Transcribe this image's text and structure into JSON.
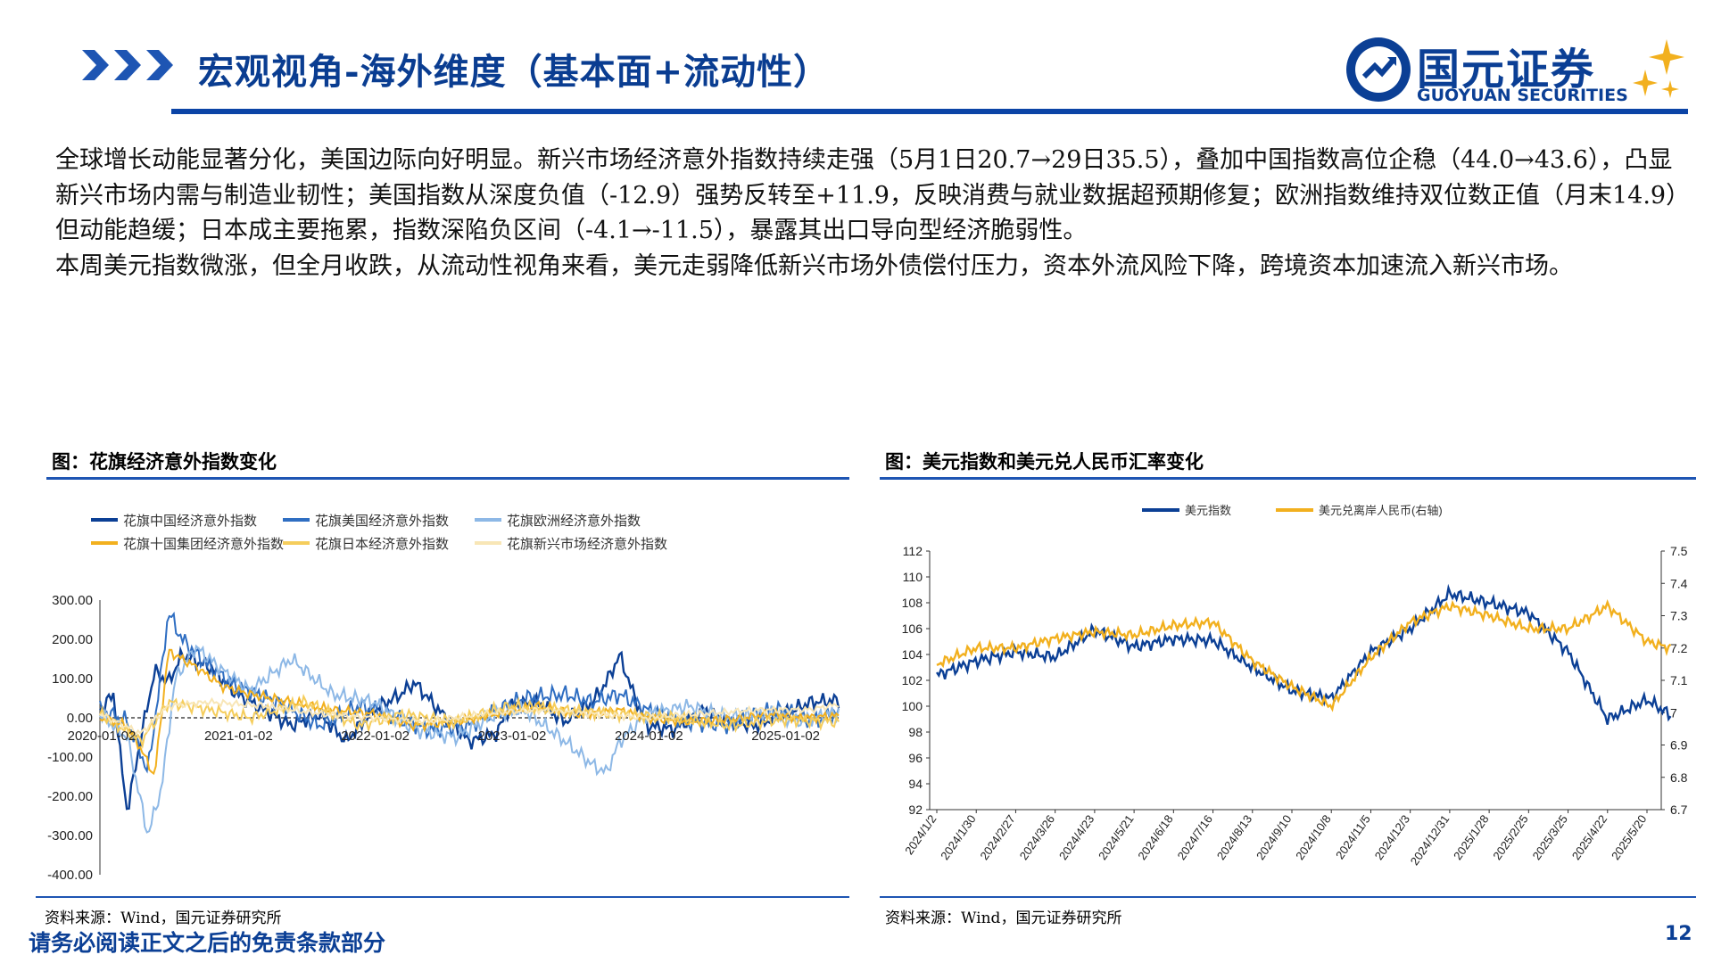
{
  "header": {
    "title": "宏观视角-海外维度（基本面+流动性）",
    "logo_cn": "国元证券",
    "logo_en": "GUOYUAN SECURITIES",
    "accent_color": "#0b44a6",
    "chevron_icon": "triple-chevron-icon"
  },
  "body": {
    "paragraph_1": "全球增长动能显著分化，美国边际向好明显。新兴市场经济意外指数持续走强（5月1日20.7→29日35.5），叠加中国指数高位企稳（44.0→43.6），凸显新兴市场内需与制造业韧性；美国指数从深度负值（-12.9）强势反转至+11.9，反映消费与就业数据超预期修复；欧洲指数维持双位数正值（月末14.9）但动能趋缓；日本成主要拖累，指数深陷负区间（-4.1→-11.5），暴露其出口导向型经济脆弱性。",
    "paragraph_2": "本周美元指数微涨，但全月收跌，从流动性视角来看，美元走弱降低新兴市场外债偿付压力，资本外流风险下降，跨境资本加速流入新兴市场。"
  },
  "figure_left": {
    "title": "图：花旗经济意外指数变化",
    "source": "资料来源：Wind，国元证券研究所"
  },
  "figure_right": {
    "title": "图：美元指数和美元兑人民币汇率变化",
    "source": "资料来源：Wind，国元证券研究所"
  },
  "footer": {
    "disclaimer": "请务必阅读正文之后的免责条款部分",
    "page_number": "12"
  },
  "chart_data": [
    {
      "type": "line",
      "legend_placement": "top",
      "grid": false,
      "ylim": [
        -400,
        300
      ],
      "y_ticks": [
        "300.00",
        "200.00",
        "100.00",
        "0.00",
        "-100.00",
        "-200.00",
        "-300.00",
        "-400.00"
      ],
      "x_ticks": [
        "2020-01-02",
        "2021-01-02",
        "2022-01-02",
        "2023-01-02",
        "2024-01-02",
        "2025-01-02"
      ],
      "x_tick_years": [
        2020,
        2021,
        2022,
        2023,
        2024,
        2025
      ],
      "xlim": [
        2020.0,
        2025.4
      ],
      "series": [
        {
          "name": "花旗中国经济意外指数",
          "color": "#0b3f95",
          "x": [
            2020.0,
            2020.1,
            2020.15,
            2020.2,
            2020.3,
            2020.4,
            2020.5,
            2020.6,
            2020.8,
            2021.0,
            2021.2,
            2021.4,
            2021.6,
            2021.8,
            2022.0,
            2022.2,
            2022.3,
            2022.5,
            2022.7,
            2022.9,
            2023.0,
            2023.2,
            2023.4,
            2023.6,
            2023.7,
            2023.8,
            2023.9,
            2024.0,
            2024.2,
            2024.4,
            2024.6,
            2024.8,
            2025.0,
            2025.2,
            2025.4
          ],
          "values": [
            20,
            60,
            -100,
            -240,
            -50,
            120,
            90,
            160,
            130,
            60,
            20,
            -20,
            10,
            -60,
            20,
            60,
            90,
            10,
            -60,
            -40,
            30,
            40,
            -10,
            40,
            90,
            160,
            60,
            -20,
            -30,
            20,
            -10,
            -20,
            10,
            40,
            44
          ]
        },
        {
          "name": "花旗美国经济意外指数",
          "color": "#2f6ec2",
          "x": [
            2020.0,
            2020.2,
            2020.3,
            2020.35,
            2020.45,
            2020.5,
            2020.6,
            2020.8,
            2021.0,
            2021.3,
            2021.6,
            2021.9,
            2022.1,
            2022.4,
            2022.7,
            2022.9,
            2023.1,
            2023.4,
            2023.6,
            2023.8,
            2024.0,
            2024.3,
            2024.6,
            2024.8,
            2025.0,
            2025.2,
            2025.4
          ],
          "values": [
            20,
            -10,
            -90,
            -140,
            120,
            270,
            200,
            130,
            80,
            40,
            -20,
            30,
            10,
            -30,
            -20,
            20,
            50,
            60,
            40,
            60,
            20,
            -10,
            -20,
            10,
            20,
            -10,
            12
          ]
        },
        {
          "name": "花旗欧洲经济意外指数",
          "color": "#8db8e6",
          "x": [
            2020.0,
            2020.2,
            2020.35,
            2020.45,
            2020.55,
            2020.7,
            2020.9,
            2021.1,
            2021.4,
            2021.7,
            2022.0,
            2022.3,
            2022.6,
            2022.9,
            2023.1,
            2023.4,
            2023.6,
            2023.7,
            2023.8,
            2024.0,
            2024.3,
            2024.6,
            2024.9,
            2025.1,
            2025.4
          ],
          "values": [
            10,
            -50,
            -300,
            -180,
            100,
            180,
            120,
            70,
            150,
            60,
            40,
            -30,
            -50,
            10,
            20,
            -60,
            -120,
            -140,
            -60,
            10,
            30,
            0,
            10,
            -10,
            15
          ]
        },
        {
          "name": "花旗十国集团经济意外指数",
          "color": "#f2b01e",
          "x": [
            2020.0,
            2020.2,
            2020.3,
            2020.4,
            2020.5,
            2020.7,
            2020.9,
            2021.1,
            2021.4,
            2021.7,
            2022.0,
            2022.3,
            2022.6,
            2022.9,
            2023.2,
            2023.5,
            2023.8,
            2024.0,
            2024.3,
            2024.6,
            2024.9,
            2025.1,
            2025.4
          ],
          "values": [
            0,
            -20,
            -80,
            -150,
            170,
            130,
            80,
            60,
            40,
            20,
            10,
            -20,
            -10,
            10,
            30,
            10,
            20,
            0,
            -10,
            -5,
            10,
            0,
            5
          ]
        },
        {
          "name": "花旗日本经济意外指数",
          "color": "#f5cd5c",
          "x": [
            2020.0,
            2020.3,
            2020.5,
            2020.8,
            2021.1,
            2021.5,
            2021.9,
            2022.2,
            2022.6,
            2023.0,
            2023.4,
            2023.8,
            2024.2,
            2024.6,
            2025.0,
            2025.4
          ],
          "values": [
            10,
            -60,
            40,
            20,
            0,
            40,
            -20,
            10,
            -10,
            30,
            20,
            10,
            0,
            -20,
            -4,
            -11
          ]
        },
        {
          "name": "花旗新兴市场经济意外指数",
          "color": "#f8e6b6",
          "x": [
            2020.0,
            2020.3,
            2020.5,
            2020.8,
            2021.2,
            2021.6,
            2022.0,
            2022.4,
            2022.8,
            2023.2,
            2023.6,
            2024.0,
            2024.4,
            2024.8,
            2025.2,
            2025.4
          ],
          "values": [
            10,
            -40,
            30,
            40,
            30,
            10,
            0,
            -10,
            10,
            20,
            10,
            0,
            10,
            20,
            21,
            35
          ]
        }
      ]
    },
    {
      "type": "line",
      "legend_placement": "top",
      "grid": false,
      "ylim_left": [
        92,
        112
      ],
      "ylim_right": [
        6.7,
        7.5
      ],
      "y_ticks_left": [
        "112",
        "110",
        "108",
        "106",
        "104",
        "102",
        "100",
        "98",
        "96",
        "94",
        "92"
      ],
      "y_ticks_right": [
        "7.5",
        "7.4",
        "7.3",
        "7.2",
        "7.1",
        "7",
        "6.9",
        "6.8",
        "6.7"
      ],
      "categories": [
        "2024/1/2",
        "2024/1/30",
        "2024/2/27",
        "2024/3/26",
        "2024/4/23",
        "2024/5/21",
        "2024/6/18",
        "2024/7/16",
        "2024/8/13",
        "2024/9/10",
        "2024/10/8",
        "2024/11/5",
        "2024/12/3",
        "2024/12/31",
        "2025/1/28",
        "2025/2/25",
        "2025/3/25",
        "2025/4/22",
        "2025/5/20"
      ],
      "series": [
        {
          "name": "美元指数",
          "axis": "left",
          "color": "#0b3f95",
          "x": [
            0,
            1,
            2,
            3,
            4,
            5,
            6,
            7,
            8,
            9,
            10,
            11,
            12,
            13,
            14,
            15,
            16,
            17,
            18,
            18.6
          ],
          "values": [
            102.4,
            103.5,
            104.2,
            103.8,
            105.9,
            104.6,
            105.2,
            105.1,
            103.0,
            101.2,
            100.6,
            104.2,
            106.0,
            108.7,
            108.0,
            107.2,
            104.2,
            99.0,
            100.5,
            99.3
          ]
        },
        {
          "name": "美元兑离岸人民币(右轴)",
          "axis": "right",
          "color": "#f2b01e",
          "x": [
            0,
            1,
            2,
            3,
            4,
            5,
            6,
            7,
            8,
            9,
            10,
            11,
            12,
            13,
            14,
            15,
            16,
            17,
            18,
            18.6
          ],
          "values": [
            7.15,
            7.2,
            7.2,
            7.23,
            7.25,
            7.24,
            7.27,
            7.28,
            7.16,
            7.08,
            7.02,
            7.17,
            7.28,
            7.33,
            7.3,
            7.26,
            7.26,
            7.33,
            7.22,
            7.2
          ]
        }
      ]
    }
  ]
}
